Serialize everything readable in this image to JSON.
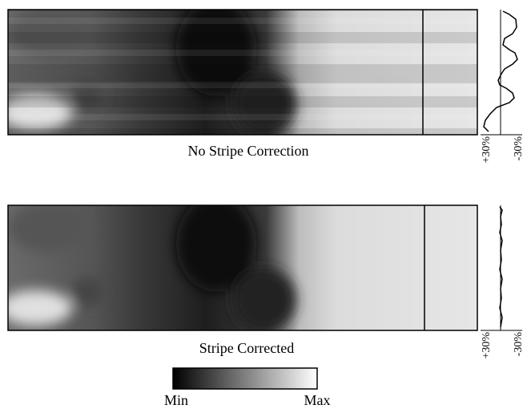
{
  "panels": [
    {
      "caption": "No Stripe Correction",
      "profile_labels": [
        "+30%",
        "-30%"
      ]
    },
    {
      "caption": "Stripe Corrected",
      "profile_labels": [
        "+30%",
        "-30%"
      ]
    }
  ],
  "colorbar": {
    "min_label": "Min",
    "max_label": "Max"
  }
}
